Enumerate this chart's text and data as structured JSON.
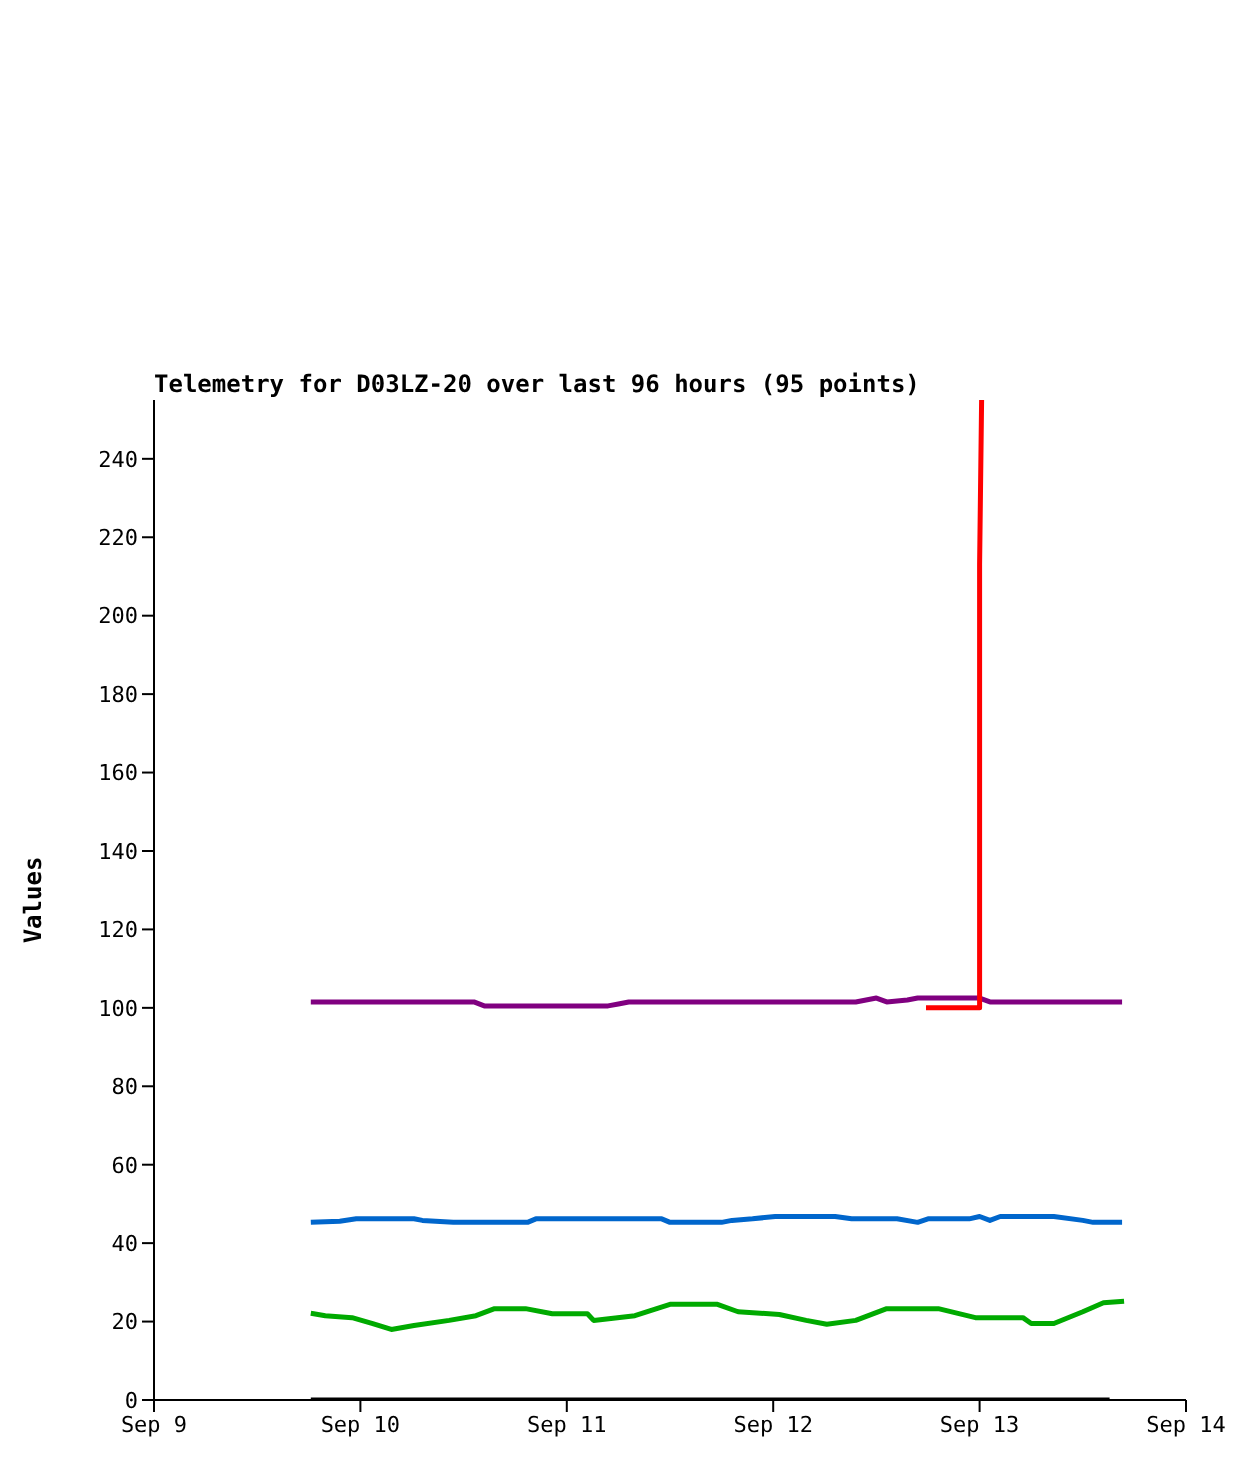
{
  "chart_data": {
    "type": "line",
    "title": "Telemetry for D03LZ-20 over last 96 hours (95 points)",
    "ylabel": "Values",
    "xlim": [
      "--09-09",
      "--09-14"
    ],
    "xticks": [
      {
        "value": "--09-09",
        "label": "Sep 9"
      },
      {
        "value": "--09-10",
        "label": "Sep 10"
      },
      {
        "value": "--09-11",
        "label": "Sep 11"
      },
      {
        "value": "--09-12",
        "label": "Sep 12"
      },
      {
        "value": "--09-13",
        "label": "Sep 13"
      },
      {
        "value": "--09-14",
        "label": "Sep 14"
      }
    ],
    "ylim": [
      0,
      255
    ],
    "yticks": [
      0,
      20,
      40,
      60,
      80,
      100,
      120,
      140,
      160,
      180,
      200,
      220,
      240
    ],
    "grid": false,
    "marker": "none",
    "line_style": "solid",
    "series": [
      {
        "color": "#000000",
        "x": [
          "--09-09T18:14",
          "--09-13T15:07"
        ],
        "values": [
          0,
          0
        ]
      },
      {
        "color": "#800080",
        "x": [
          "--09-09T18:14",
          "--09-10T13:12",
          "--09-10T14:24",
          "--09-11T04:48",
          "--09-11T06:00",
          "--09-11T07:12",
          "--09-12T09:36",
          "--09-12T12:00",
          "--09-12T13:12",
          "--09-12T15:36",
          "--09-12T16:48",
          "--09-13T00:00",
          "--09-13T01:12",
          "--09-13T16:34"
        ],
        "values": [
          101.5,
          101.5,
          100.5,
          100.5,
          101,
          101.5,
          101.5,
          102.5,
          101.5,
          102,
          102.5,
          102.5,
          101.5,
          101.5
        ]
      },
      {
        "color": "#ff0000",
        "x": [
          "--09-12T17:46",
          "--09-13T00:00",
          "--09-13T00:00",
          "--09-13T00:14"
        ],
        "values": [
          100,
          100,
          213,
          255
        ]
      },
      {
        "color": "#0066cc",
        "x": [
          "--09-09T18:14",
          "--09-09T21:36",
          "--09-09T23:31",
          "--09-10T06:14",
          "--09-10T07:12",
          "--09-10T10:48",
          "--09-10T19:26",
          "--09-10T20:24",
          "--09-11T11:02",
          "--09-11T12:00",
          "--09-11T18:00",
          "--09-11T19:12",
          "--09-11T21:36",
          "--09-12T00:14",
          "--09-12T07:12",
          "--09-12T09:07",
          "--09-12T14:24",
          "--09-12T16:48",
          "--09-12T18:00",
          "--09-12T22:48",
          "--09-13T00:00",
          "--09-13T01:12",
          "--09-13T02:24",
          "--09-13T08:38",
          "--09-13T12:00",
          "--09-13T13:12",
          "--09-13T16:34"
        ],
        "values": [
          45.3,
          45.6,
          46.2,
          46.2,
          45.8,
          45.3,
          45.3,
          46.2,
          46.2,
          45.3,
          45.3,
          45.8,
          46.2,
          46.8,
          46.8,
          46.2,
          46.2,
          45.3,
          46.2,
          46.2,
          46.8,
          45.8,
          46.8,
          46.8,
          45.8,
          45.3,
          45.3
        ]
      },
      {
        "color": "#00aa00",
        "x": [
          "--09-09T18:14",
          "--09-09T19:55",
          "--09-09T23:02",
          "--09-10T01:26",
          "--09-10T03:36",
          "--09-10T06:14",
          "--09-10T10:19",
          "--09-10T13:26",
          "--09-10T15:36",
          "--09-10T19:12",
          "--09-10T22:19",
          "--09-11T02:24",
          "--09-11T03:07",
          "--09-11T07:55",
          "--09-11T12:00",
          "--09-11T17:31",
          "--09-11T19:55",
          "--09-12T00:43",
          "--09-12T03:50",
          "--09-12T06:14",
          "--09-12T09:36",
          "--09-12T13:12",
          "--09-12T19:12",
          "--09-12T23:31",
          "--09-13T05:02",
          "--09-13T06:00",
          "--09-13T08:38",
          "--09-13T12:00",
          "--09-13T14:24",
          "--09-13T16:48"
        ],
        "values": [
          22.1,
          21.5,
          21.0,
          19.5,
          18.0,
          19.0,
          20.3,
          21.5,
          23.3,
          23.3,
          22.0,
          22.0,
          20.3,
          21.5,
          24.4,
          24.4,
          22.5,
          21.8,
          20.3,
          19.3,
          20.3,
          23.3,
          23.3,
          21.0,
          21.0,
          19.5,
          19.5,
          22.5,
          24.8,
          25.2
        ]
      }
    ]
  }
}
